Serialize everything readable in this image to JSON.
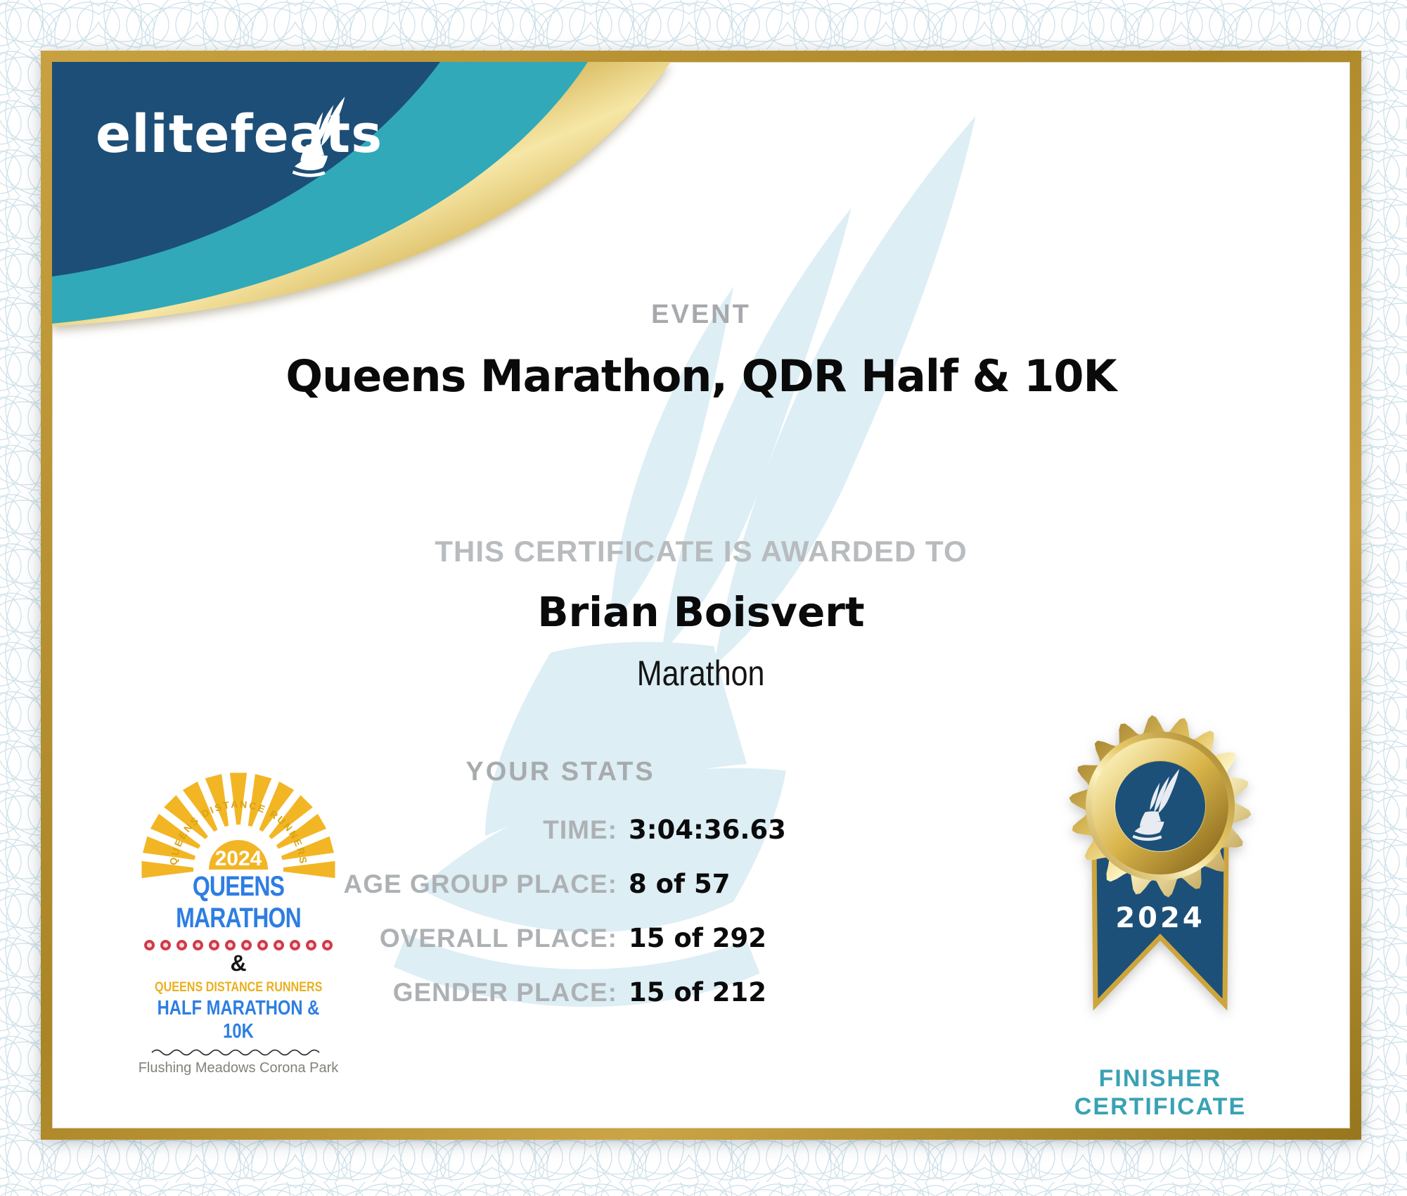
{
  "certificate": {
    "brand": "elitefeats",
    "event_label": "EVENT",
    "event_title": "Queens Marathon, QDR Half & 10K",
    "awarded_label": "THIS CERTIFICATE IS AWARDED TO",
    "recipient_name": "Brian Boisvert",
    "division": "Marathon",
    "stats_heading": "YOUR STATS",
    "stats": [
      {
        "label": "TIME:",
        "value": "3:04:36.63"
      },
      {
        "label": "AGE GROUP PLACE:",
        "value": "8 of 57"
      },
      {
        "label": "OVERALL PLACE:",
        "value": "15 of 292"
      },
      {
        "label": "GENDER PLACE:",
        "value": "15 of 212"
      }
    ],
    "race_logo": {
      "arc_text": "QUEENS DISTANCE RUNNERS",
      "year": "2024",
      "title": "QUEENS MARATHON",
      "ampersand": "&",
      "subtitle": "QUEENS DISTANCE RUNNERS",
      "subtitle2": "HALF MARATHON & 10K",
      "venue": "Flushing Meadows Corona Park"
    },
    "medal": {
      "year": "2024",
      "caption_line1": "FINISHER",
      "caption_line2": "CERTIFICATE"
    },
    "colors": {
      "navy": "#1c4e77",
      "teal": "#31a9b9",
      "frame_gold": "#b8922e",
      "accent_teal": "#39a2b4",
      "race_blue": "#2d7ee2",
      "sun_gold": "#f2b524",
      "dot_red": "#cf3b49",
      "watermark_blue": "#ddeef5",
      "label_gray": "#adb1b4"
    }
  }
}
